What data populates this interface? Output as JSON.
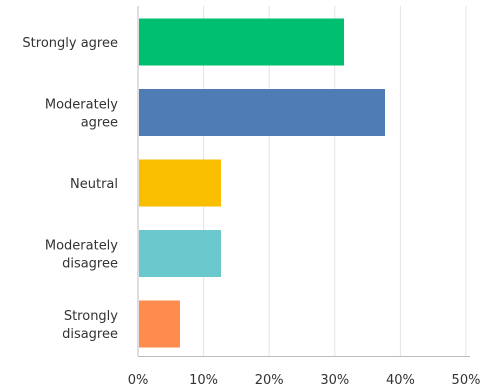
{
  "chart_data": {
    "type": "bar",
    "orientation": "horizontal",
    "categories": [
      [
        "Strongly agree"
      ],
      [
        "Moderately",
        "agree"
      ],
      [
        "Neutral"
      ],
      [
        "Moderately",
        "disagree"
      ],
      [
        "Strongly",
        "disagree"
      ]
    ],
    "values": [
      31.25,
      37.5,
      12.5,
      12.5,
      6.25
    ],
    "colors": [
      "#00bf6f",
      "#507cb6",
      "#f9be00",
      "#6bc8cd",
      "#ff8b4f"
    ],
    "xlim": [
      0,
      50
    ],
    "xticks": [
      0,
      10,
      20,
      30,
      40,
      50
    ],
    "xtick_labels": [
      "0%",
      "10%",
      "20%",
      "30%",
      "40%",
      "50%"
    ],
    "grid": true,
    "title": "",
    "xlabel": "",
    "ylabel": ""
  }
}
